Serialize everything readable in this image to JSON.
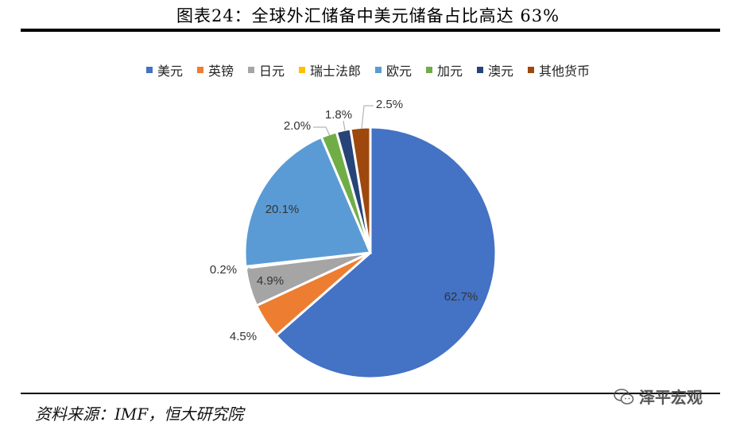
{
  "title": "图表24：全球外汇储备中美元储备占比高达 63%",
  "source": "资料来源：IMF，恒大研究院",
  "watermark": "泽平宏观",
  "chart_data": {
    "type": "pie",
    "legend_position": "top",
    "series": [
      {
        "name": "美元",
        "value": 62.7,
        "label": "62.7%",
        "color": "#4472C4"
      },
      {
        "name": "英镑",
        "value": 4.5,
        "label": "4.5%",
        "color": "#ED7D31"
      },
      {
        "name": "日元",
        "value": 4.9,
        "label": "4.9%",
        "color": "#A5A5A5"
      },
      {
        "name": "瑞士法郎",
        "value": 0.2,
        "label": "0.2%",
        "color": "#FFC000"
      },
      {
        "name": "欧元",
        "value": 20.1,
        "label": "20.1%",
        "color": "#5B9BD5"
      },
      {
        "name": "加元",
        "value": 2.0,
        "label": "2.0%",
        "color": "#70AD47"
      },
      {
        "name": "澳元",
        "value": 1.8,
        "label": "1.8%",
        "color": "#264478"
      },
      {
        "name": "其他货币",
        "value": 2.5,
        "label": "2.5%",
        "color": "#9E480E"
      }
    ]
  }
}
